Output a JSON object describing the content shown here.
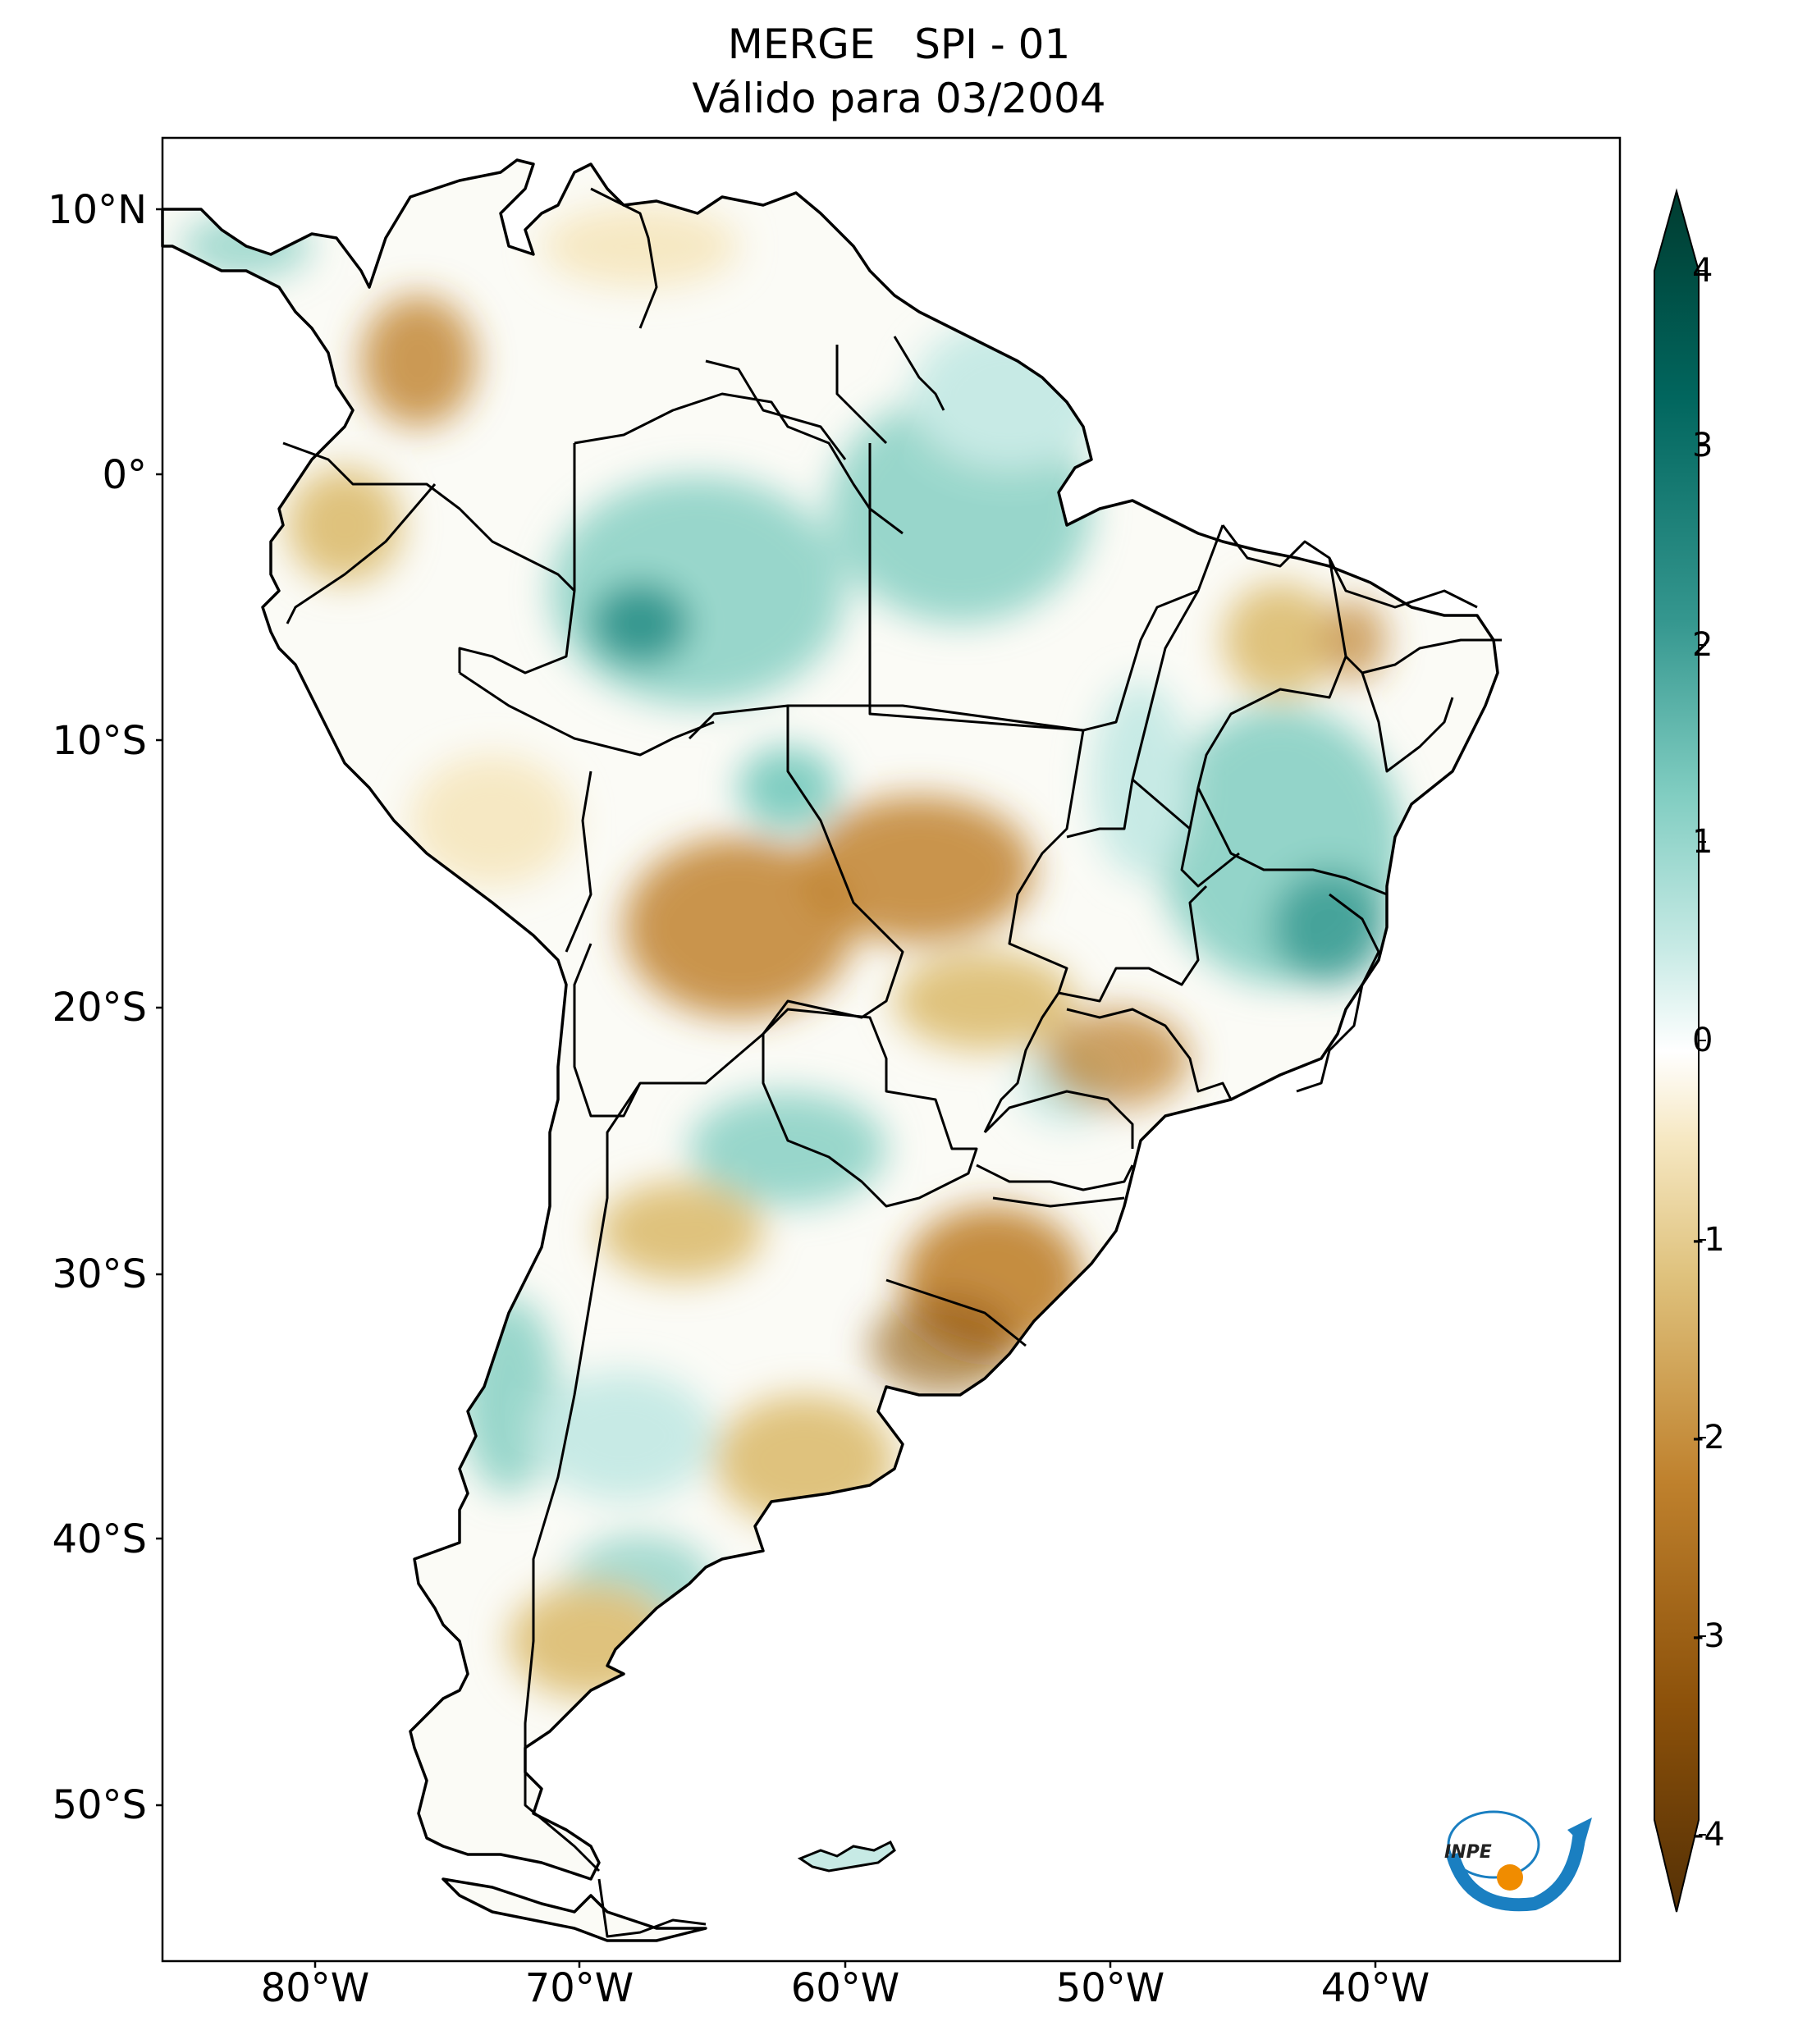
{
  "map": {
    "title_line1": "MERGE   SPI - 01",
    "title_line2": "Válido para 03/2004",
    "lat_labels": [
      "10°N",
      "0°",
      "10°S",
      "20°S",
      "30°S",
      "40°S",
      "50°S"
    ],
    "lon_labels": [
      "80°W",
      "70°W",
      "60°W",
      "50°W",
      "40°W"
    ],
    "lon_extent": [
      -85,
      -30
    ],
    "lat_extent": [
      -56,
      13
    ],
    "colorbar": {
      "ticks": [
        "4",
        "3",
        "2",
        "1",
        "0",
        "-1",
        "-2",
        "-3",
        "-4"
      ],
      "range": [
        -4,
        4
      ],
      "colors": [
        "#543005",
        "#8c510a",
        "#bf812d",
        "#dfc27d",
        "#f6e8c3",
        "#ffffff",
        "#c7eae5",
        "#80cdc1",
        "#35978f",
        "#01665e",
        "#003c30"
      ]
    },
    "logo_text": "INPE",
    "colors": {
      "drought": "#bf812d",
      "wet": "#35978f",
      "border": "#000000"
    }
  }
}
